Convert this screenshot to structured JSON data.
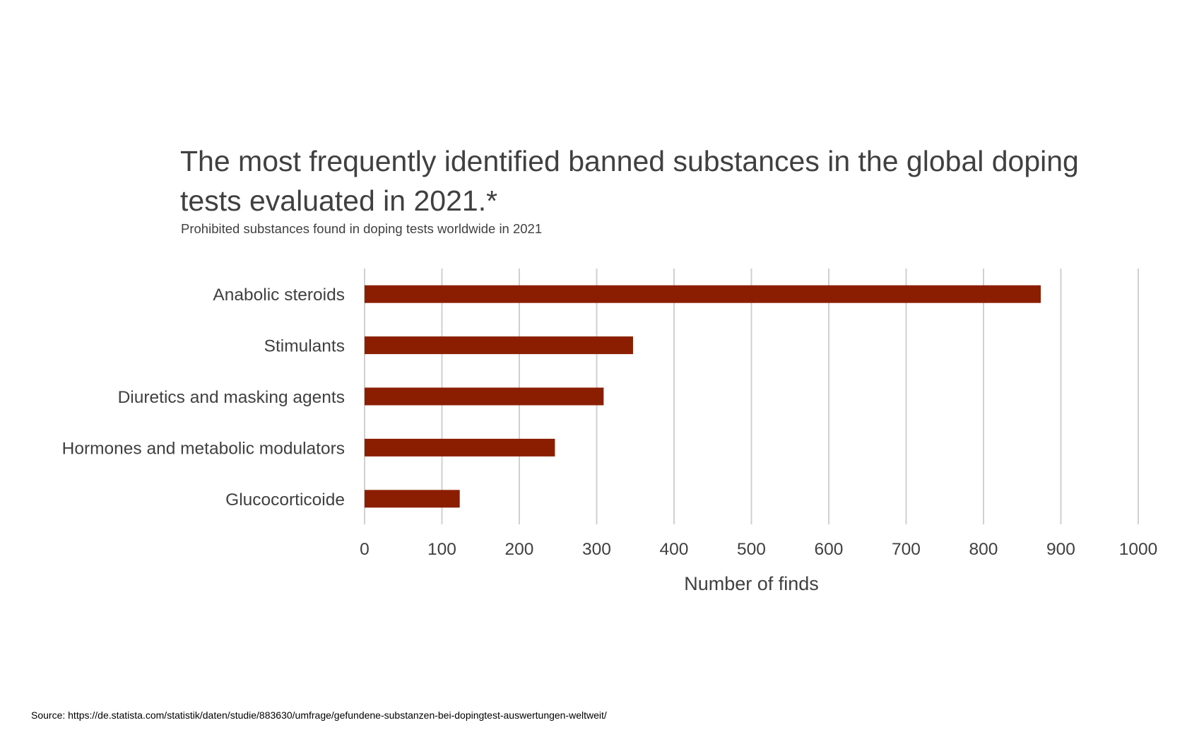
{
  "chart_data": {
    "type": "bar",
    "orientation": "horizontal",
    "title": "The most frequently identified banned substances in the global doping tests evaluated in 2021.*",
    "subtitle": "Prohibited substances found in doping tests worldwide in 2021",
    "categories": [
      "Anabolic steroids",
      "Stimulants",
      "Diuretics and masking agents",
      "Hormones and metabolic modulators",
      "Glucocorticoide"
    ],
    "values": [
      874,
      347,
      309,
      246,
      123
    ],
    "xlabel": "Number of finds",
    "ylabel": "",
    "xlim": [
      0,
      1000
    ],
    "xticks": [
      0,
      100,
      200,
      300,
      400,
      500,
      600,
      700,
      800,
      900,
      1000
    ],
    "grid": true,
    "legend": "none",
    "colors": {
      "bar": "#8b1e00",
      "grid": "#d0d0d0",
      "text": "#404040"
    }
  },
  "source": "Source: https://de.statista.com/statistik/daten/studie/883630/umfrage/gefundene-substanzen-bei-dopingtest-auswertungen-weltweit/"
}
